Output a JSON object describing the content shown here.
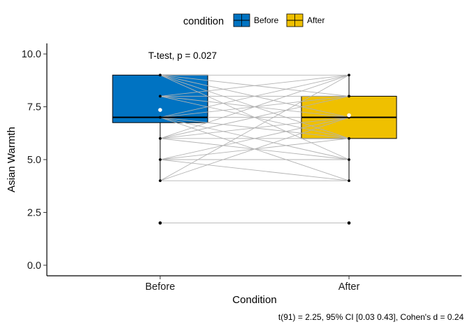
{
  "chart_data": {
    "type": "box",
    "title": "",
    "xlabel": "Condition",
    "ylabel": "Asian Warmth",
    "categories": [
      "Before",
      "After"
    ],
    "ylim": [
      -0.5,
      10.5
    ],
    "yticks": [
      "0.0",
      "2.5",
      "5.0",
      "7.5",
      "10.0"
    ],
    "ytick_values": [
      0,
      2.5,
      5,
      7.5,
      10
    ],
    "grid": false,
    "legend": {
      "title": "condition",
      "position": "top",
      "entries": [
        {
          "label": "Before",
          "color": "#0073C2"
        },
        {
          "label": "After",
          "color": "#EFC000"
        }
      ]
    },
    "boxes": [
      {
        "category": "Before",
        "q1": 6.75,
        "median": 7,
        "q3": 9,
        "whisker_low": 4,
        "whisker_high": 9,
        "mean": 7.35,
        "outliers": [
          2
        ],
        "color": "#0073C2"
      },
      {
        "category": "After",
        "q1": 6,
        "median": 7,
        "q3": 8,
        "whisker_low": 4,
        "whisker_high": 9,
        "mean": 7.1,
        "outliers": [
          2
        ],
        "color": "#EFC000"
      }
    ],
    "paired_lines": [
      [
        9,
        9
      ],
      [
        9,
        8
      ],
      [
        9,
        7
      ],
      [
        9,
        6
      ],
      [
        9,
        5
      ],
      [
        8,
        9
      ],
      [
        8,
        8
      ],
      [
        8,
        7
      ],
      [
        8,
        6
      ],
      [
        7,
        9
      ],
      [
        7,
        8
      ],
      [
        7,
        7
      ],
      [
        7,
        6
      ],
      [
        7,
        5
      ],
      [
        7,
        4
      ],
      [
        6,
        9
      ],
      [
        6,
        8
      ],
      [
        6,
        7
      ],
      [
        6,
        6
      ],
      [
        6,
        5
      ],
      [
        5,
        7
      ],
      [
        5,
        6
      ],
      [
        5,
        5
      ],
      [
        5,
        4
      ],
      [
        4,
        9
      ],
      [
        4,
        7
      ],
      [
        4,
        4
      ],
      [
        2,
        2
      ]
    ],
    "annotation": "T-test, p = 0.027",
    "caption": "t(91) = 2.25, 95% CI [0.03 0.43], Cohen's d = 0.24"
  }
}
